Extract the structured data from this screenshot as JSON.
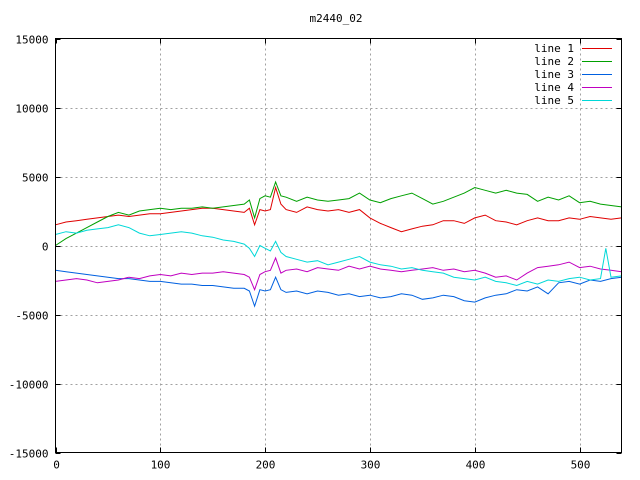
{
  "chart_data": {
    "type": "line",
    "title": "m2440_02",
    "xlabel": "",
    "ylabel": "",
    "xlim": [
      0,
      540
    ],
    "ylim": [
      -15000,
      15000
    ],
    "x_ticks": [
      0,
      100,
      200,
      300,
      400,
      500
    ],
    "y_ticks": [
      -15000,
      -10000,
      -5000,
      0,
      5000,
      10000,
      15000
    ],
    "grid": true,
    "legend_position": "top-right",
    "series": [
      {
        "name": "line 1",
        "color": "#e00000",
        "x": [
          0,
          10,
          20,
          30,
          40,
          50,
          60,
          70,
          80,
          90,
          100,
          110,
          120,
          130,
          140,
          150,
          160,
          170,
          180,
          185,
          190,
          195,
          200,
          205,
          210,
          215,
          220,
          230,
          240,
          250,
          260,
          270,
          280,
          290,
          300,
          310,
          320,
          330,
          340,
          350,
          360,
          370,
          380,
          390,
          400,
          410,
          420,
          430,
          440,
          450,
          460,
          470,
          480,
          490,
          500,
          510,
          520,
          530,
          540
        ],
        "y": [
          1500,
          1700,
          1800,
          1900,
          2000,
          2100,
          2200,
          2100,
          2200,
          2300,
          2300,
          2400,
          2500,
          2600,
          2700,
          2700,
          2600,
          2500,
          2400,
          2700,
          1500,
          2600,
          2500,
          2600,
          4200,
          3000,
          2600,
          2400,
          2800,
          2600,
          2500,
          2600,
          2400,
          2600,
          2000,
          1600,
          1300,
          1000,
          1200,
          1400,
          1500,
          1800,
          1800,
          1600,
          2000,
          2200,
          1800,
          1700,
          1500,
          1800,
          2000,
          1800,
          1800,
          2000,
          1900,
          2100,
          2000,
          1900,
          2000
        ]
      },
      {
        "name": "line 2",
        "color": "#00a000",
        "x": [
          0,
          10,
          20,
          30,
          40,
          50,
          60,
          70,
          80,
          90,
          100,
          110,
          120,
          130,
          140,
          150,
          160,
          170,
          180,
          185,
          190,
          195,
          200,
          205,
          210,
          215,
          220,
          230,
          240,
          250,
          260,
          270,
          280,
          290,
          300,
          310,
          320,
          330,
          340,
          350,
          360,
          370,
          380,
          390,
          400,
          410,
          420,
          430,
          440,
          450,
          460,
          470,
          480,
          490,
          500,
          510,
          520,
          530,
          540
        ],
        "y": [
          0,
          500,
          900,
          1300,
          1700,
          2100,
          2400,
          2200,
          2500,
          2600,
          2700,
          2600,
          2700,
          2700,
          2800,
          2700,
          2800,
          2900,
          3000,
          3300,
          2000,
          3400,
          3600,
          3500,
          4600,
          3600,
          3500,
          3200,
          3500,
          3300,
          3200,
          3300,
          3400,
          3800,
          3300,
          3100,
          3400,
          3600,
          3800,
          3400,
          3000,
          3200,
          3500,
          3800,
          4200,
          4000,
          3800,
          4000,
          3800,
          3700,
          3200,
          3500,
          3300,
          3600,
          3100,
          3200,
          3000,
          2900,
          2800
        ]
      },
      {
        "name": "line 3",
        "color": "#0060e0",
        "x": [
          0,
          10,
          20,
          30,
          40,
          50,
          60,
          70,
          80,
          90,
          100,
          110,
          120,
          130,
          140,
          150,
          160,
          170,
          180,
          185,
          190,
          195,
          200,
          205,
          210,
          215,
          220,
          230,
          240,
          250,
          260,
          270,
          280,
          290,
          300,
          310,
          320,
          330,
          340,
          350,
          360,
          370,
          380,
          390,
          400,
          410,
          420,
          430,
          440,
          450,
          460,
          470,
          480,
          490,
          500,
          510,
          520,
          530,
          540
        ],
        "y": [
          -1800,
          -1900,
          -2000,
          -2100,
          -2200,
          -2300,
          -2400,
          -2400,
          -2500,
          -2600,
          -2600,
          -2700,
          -2800,
          -2800,
          -2900,
          -2900,
          -3000,
          -3100,
          -3100,
          -3300,
          -4400,
          -3200,
          -3300,
          -3200,
          -2300,
          -3200,
          -3400,
          -3300,
          -3500,
          -3300,
          -3400,
          -3600,
          -3500,
          -3700,
          -3600,
          -3800,
          -3700,
          -3500,
          -3600,
          -3900,
          -3800,
          -3600,
          -3700,
          -4000,
          -4100,
          -3800,
          -3600,
          -3500,
          -3200,
          -3300,
          -3000,
          -3500,
          -2700,
          -2600,
          -2800,
          -2500,
          -2600,
          -2400,
          -2300
        ]
      },
      {
        "name": "line 4",
        "color": "#c000c0",
        "x": [
          0,
          10,
          20,
          30,
          40,
          50,
          60,
          70,
          80,
          90,
          100,
          110,
          120,
          130,
          140,
          150,
          160,
          170,
          180,
          185,
          190,
          195,
          200,
          205,
          210,
          215,
          220,
          230,
          240,
          250,
          260,
          270,
          280,
          290,
          300,
          310,
          320,
          330,
          340,
          350,
          360,
          370,
          380,
          390,
          400,
          410,
          420,
          430,
          440,
          450,
          460,
          470,
          480,
          490,
          500,
          510,
          520,
          530,
          540
        ],
        "y": [
          -2600,
          -2500,
          -2400,
          -2500,
          -2700,
          -2600,
          -2500,
          -2300,
          -2400,
          -2200,
          -2100,
          -2200,
          -2000,
          -2100,
          -2000,
          -2000,
          -1900,
          -2000,
          -2100,
          -2300,
          -3200,
          -2100,
          -1900,
          -1800,
          -900,
          -2000,
          -1800,
          -1700,
          -1900,
          -1600,
          -1700,
          -1800,
          -1500,
          -1700,
          -1500,
          -1700,
          -1800,
          -1900,
          -1800,
          -1700,
          -1600,
          -1800,
          -1700,
          -1900,
          -1800,
          -2000,
          -2300,
          -2200,
          -2500,
          -2000,
          -1600,
          -1500,
          -1400,
          -1200,
          -1600,
          -1500,
          -1700,
          -1800,
          -1900
        ]
      },
      {
        "name": "line 5",
        "color": "#00d8d8",
        "x": [
          0,
          10,
          20,
          30,
          40,
          50,
          60,
          70,
          80,
          90,
          100,
          110,
          120,
          130,
          140,
          150,
          160,
          170,
          180,
          185,
          190,
          195,
          200,
          205,
          210,
          215,
          220,
          230,
          240,
          250,
          260,
          270,
          280,
          290,
          300,
          310,
          320,
          330,
          340,
          350,
          360,
          370,
          380,
          390,
          400,
          410,
          420,
          430,
          440,
          450,
          460,
          470,
          480,
          490,
          500,
          510,
          520,
          525,
          530,
          540
        ],
        "y": [
          800,
          1000,
          900,
          1100,
          1200,
          1300,
          1500,
          1300,
          900,
          700,
          800,
          900,
          1000,
          900,
          700,
          600,
          400,
          300,
          100,
          -200,
          -800,
          0,
          -200,
          -400,
          300,
          -500,
          -800,
          -1000,
          -1200,
          -1100,
          -1400,
          -1200,
          -1000,
          -800,
          -1200,
          -1400,
          -1500,
          -1700,
          -1600,
          -1800,
          -1900,
          -2000,
          -2300,
          -2400,
          -2500,
          -2300,
          -2600,
          -2700,
          -2900,
          -2600,
          -2800,
          -2500,
          -2600,
          -2400,
          -2300,
          -2500,
          -2400,
          -200,
          -2300,
          -2200
        ]
      }
    ]
  }
}
